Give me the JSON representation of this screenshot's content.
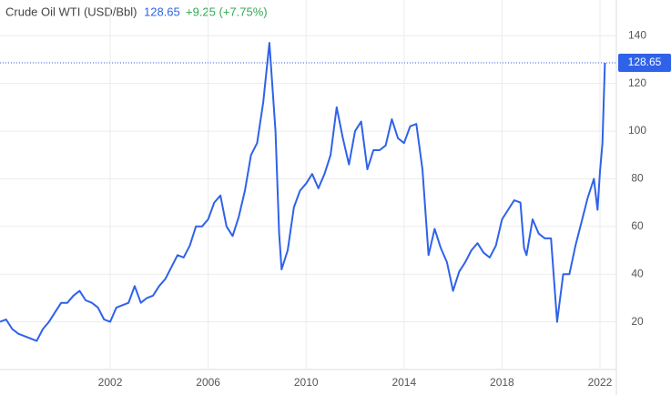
{
  "chart_data": {
    "type": "line",
    "title": "Crude Oil WTI (USD/Bbl)",
    "change": "+9.25 (+7.75%)",
    "xlim": [
      1997.5,
      2022.67
    ],
    "xticks": [
      2002,
      2006,
      2010,
      2014,
      2018,
      2022
    ],
    "ylim": [
      0,
      155
    ],
    "yticks": [
      20,
      40,
      60,
      80,
      100,
      120,
      140
    ],
    "grid": true,
    "series": [
      {
        "name": "Crude Oil WTI",
        "color": "#2f62e9",
        "x": [
          1997.5,
          1997.75,
          1998.0,
          1998.25,
          1998.5,
          1998.75,
          1999.0,
          1999.25,
          1999.5,
          1999.75,
          2000.0,
          2000.25,
          2000.5,
          2000.75,
          2001.0,
          2001.25,
          2001.5,
          2001.75,
          2002.0,
          2002.25,
          2002.5,
          2002.75,
          2003.0,
          2003.25,
          2003.5,
          2003.75,
          2004.0,
          2004.25,
          2004.5,
          2004.75,
          2005.0,
          2005.25,
          2005.5,
          2005.75,
          2006.0,
          2006.25,
          2006.5,
          2006.75,
          2007.0,
          2007.25,
          2007.5,
          2007.75,
          2008.0,
          2008.25,
          2008.5,
          2008.75,
          2008.9,
          2009.0,
          2009.25,
          2009.5,
          2009.75,
          2010.0,
          2010.25,
          2010.5,
          2010.75,
          2011.0,
          2011.25,
          2011.5,
          2011.75,
          2012.0,
          2012.25,
          2012.5,
          2012.75,
          2013.0,
          2013.25,
          2013.5,
          2013.75,
          2014.0,
          2014.25,
          2014.5,
          2014.75,
          2015.0,
          2015.25,
          2015.5,
          2015.75,
          2016.0,
          2016.25,
          2016.5,
          2016.75,
          2017.0,
          2017.25,
          2017.5,
          2017.75,
          2018.0,
          2018.25,
          2018.5,
          2018.75,
          2018.9,
          2019.0,
          2019.25,
          2019.5,
          2019.75,
          2020.0,
          2020.25,
          2020.5,
          2020.75,
          2021.0,
          2021.25,
          2021.5,
          2021.75,
          2021.9,
          2022.0,
          2022.1,
          2022.2
        ],
        "values": [
          20,
          21,
          17,
          15,
          14,
          13,
          12,
          17,
          20,
          24,
          28,
          28,
          31,
          33,
          29,
          28,
          26,
          21,
          20,
          26,
          27,
          28,
          35,
          28,
          30,
          31,
          35,
          38,
          43,
          48,
          47,
          52,
          60,
          60,
          63,
          70,
          73,
          60,
          56,
          64,
          75,
          90,
          95,
          112,
          137,
          100,
          57,
          42,
          50,
          68,
          75,
          78,
          82,
          76,
          82,
          90,
          110,
          97,
          86,
          100,
          104,
          84,
          92,
          92,
          94,
          105,
          97,
          95,
          102,
          103,
          84,
          48,
          59,
          51,
          45,
          33,
          41,
          45,
          50,
          53,
          49,
          47,
          52,
          63,
          67,
          71,
          70,
          51,
          48,
          63,
          57,
          55,
          55,
          20,
          40,
          40,
          52,
          62,
          72,
          80,
          67,
          83,
          95,
          128.65
        ]
      }
    ]
  }
}
